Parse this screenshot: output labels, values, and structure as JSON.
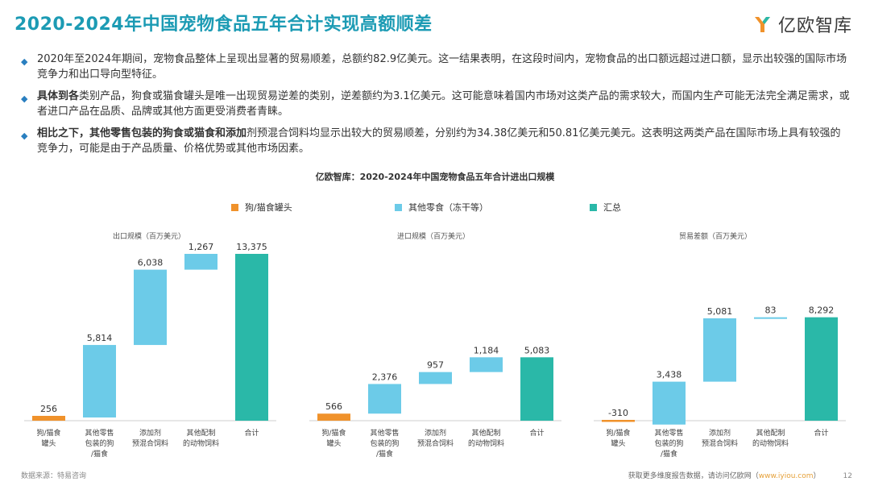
{
  "title": "2020-2024年中国宠物食品五年合计实现高额顺差",
  "logo": {
    "text": "亿欧智库"
  },
  "bullets": [
    {
      "lead": "",
      "text": "2020年至2024年期间，宠物食品整体上呈现出显著的贸易顺差，总额约82.9亿美元。这一结果表明，在这段时间内，宠物食品的出口额远超过进口额，显示出较强的国际市场竞争力和出口导向型特征。"
    },
    {
      "lead": "具体到各",
      "text": "类别产品，狗食或猫食罐头是唯一出现贸易逆差的类别，逆差额约为3.1亿美元。这可能意味着国内市场对这类产品的需求较大，而国内生产可能无法完全满足需求，或者进口产品在品质、品牌或其他方面更受消费者青睐。"
    },
    {
      "lead": "相比之下，其他零售包装的狗食或猫食和添加",
      "text": "剂预混合饲料均显示出较大的贸易顺差，分别约为34.38亿美元和50.81亿美元美元。这表明这两类产品在国际市场上具有较强的竞争力，可能是由于产品质量、价格优势或其他市场因素。"
    }
  ],
  "chart_title": "亿欧智库：2020-2024年中国宠物食品五年合计进出口规模",
  "legend": [
    {
      "label": "狗/猫食罐头",
      "color": "#f0922b"
    },
    {
      "label": "其他零食（冻干等）",
      "color": "#6ccbe8"
    },
    {
      "label": "汇总",
      "color": "#2ab8a8"
    }
  ],
  "chart_data": [
    {
      "type": "bar",
      "subtitle": "出口规模（百万美元）",
      "categories": [
        "狗/猫食\n罐头",
        "其他零售\n包装的狗\n/猫食",
        "添加剂\n预混合饲料",
        "其他配制\n的动物饲料",
        "合计"
      ],
      "values": [
        256,
        5814,
        6038,
        1267,
        13375
      ],
      "labels": [
        "256",
        "5,814",
        "6,038",
        "1,267",
        "13,375"
      ],
      "kinds": [
        "orange",
        "blue",
        "blue",
        "blue",
        "total"
      ]
    },
    {
      "type": "bar",
      "subtitle": "进口规模（百万美元）",
      "categories": [
        "狗/猫食\n罐头",
        "其他零售\n包装的狗\n/猫食",
        "添加剂\n预混合饲料",
        "其他配制\n的动物饲料",
        "合计"
      ],
      "values": [
        566,
        2376,
        957,
        1184,
        5083
      ],
      "labels": [
        "566",
        "2,376",
        "957",
        "1,184",
        "5,083"
      ],
      "kinds": [
        "orange",
        "blue",
        "blue",
        "blue",
        "total"
      ]
    },
    {
      "type": "bar",
      "subtitle": "贸易差额（百万美元）",
      "categories": [
        "狗/猫食\n罐头",
        "其他零售\n包装的狗\n/猫食",
        "添加剂\n预混合饲料",
        "其他配制\n的动物饲料",
        "合计"
      ],
      "values": [
        -310,
        3438,
        5081,
        83,
        8292
      ],
      "labels": [
        "-310",
        "3,438",
        "5,081",
        "83",
        "8,292"
      ],
      "kinds": [
        "orange",
        "blue",
        "blue",
        "blue",
        "total"
      ]
    }
  ],
  "colors": {
    "orange": "#f0922b",
    "blue": "#6ccbe8",
    "total": "#2ab8a8",
    "title": "#1c9bb4"
  },
  "footer": {
    "source": "数据来源：特易咨询",
    "more": "获取更多维度报告数据，请访问亿欧网（",
    "link": "www.iyiou.com",
    "close": "）",
    "page": "12"
  }
}
